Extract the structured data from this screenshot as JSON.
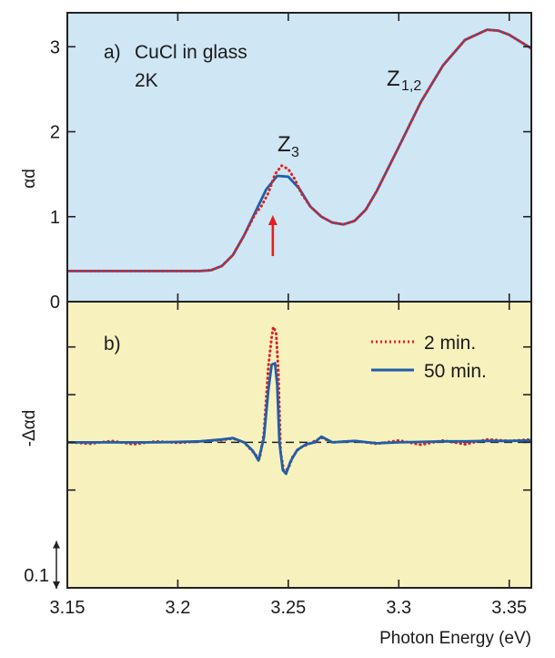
{
  "chart_data": [
    {
      "panel": "a)",
      "type": "line",
      "annotations": {
        "sample": "CuCl in glass",
        "temperature": "2K",
        "z3": "Z3",
        "z12": "Z1,2"
      },
      "ylabel": "αd",
      "xlim": [
        3.15,
        3.36
      ],
      "ylim": [
        0,
        3.4
      ],
      "yticks": [
        0,
        1,
        2,
        3
      ],
      "background": "#cfe6f4",
      "series": [
        {
          "name": "50 min.",
          "color": "#1f5fa8",
          "style": "solid",
          "x": [
            3.15,
            3.2,
            3.21,
            3.215,
            3.22,
            3.225,
            3.23,
            3.235,
            3.24,
            3.245,
            3.25,
            3.255,
            3.26,
            3.265,
            3.27,
            3.275,
            3.28,
            3.285,
            3.29,
            3.3,
            3.31,
            3.32,
            3.33,
            3.34,
            3.345,
            3.35,
            3.36
          ],
          "y": [
            0.36,
            0.36,
            0.36,
            0.37,
            0.42,
            0.55,
            0.78,
            1.05,
            1.32,
            1.48,
            1.47,
            1.33,
            1.12,
            1.0,
            0.93,
            0.91,
            0.95,
            1.08,
            1.3,
            1.82,
            2.35,
            2.78,
            3.08,
            3.2,
            3.19,
            3.14,
            2.98
          ]
        },
        {
          "name": "2 min.",
          "color": "#e02020",
          "style": "dotted",
          "x": [
            3.15,
            3.2,
            3.21,
            3.215,
            3.22,
            3.225,
            3.23,
            3.235,
            3.238,
            3.241,
            3.244,
            3.247,
            3.25,
            3.253,
            3.256,
            3.26,
            3.265,
            3.27,
            3.275,
            3.28,
            3.285,
            3.29,
            3.3,
            3.31,
            3.32,
            3.33,
            3.34,
            3.345,
            3.35,
            3.36
          ],
          "y": [
            0.36,
            0.36,
            0.36,
            0.37,
            0.42,
            0.55,
            0.78,
            1.03,
            1.13,
            1.28,
            1.5,
            1.6,
            1.56,
            1.44,
            1.27,
            1.12,
            1.0,
            0.93,
            0.91,
            0.95,
            1.08,
            1.3,
            1.82,
            2.35,
            2.78,
            3.08,
            3.2,
            3.19,
            3.14,
            2.98
          ]
        }
      ],
      "arrow_at_x": 3.243
    },
    {
      "panel": "b)",
      "type": "line",
      "ylabel": "-Δαd",
      "xlabel": "Photon Energy (eV)",
      "xlim": [
        3.15,
        3.36
      ],
      "ylim": [
        -0.305,
        0.295
      ],
      "yticks": [
        -0.1,
        0,
        0.1,
        0.2
      ],
      "xticks": [
        3.15,
        3.2,
        3.25,
        3.3,
        3.35
      ],
      "scale_bar": {
        "label": "0.1",
        "value": 0.1
      },
      "background": "#f7f1be",
      "legend": "top-right",
      "series": [
        {
          "name": "2 min.",
          "color": "#e02020",
          "style": "dotted",
          "x": [
            3.15,
            3.16,
            3.17,
            3.18,
            3.19,
            3.2,
            3.21,
            3.22,
            3.225,
            3.23,
            3.234,
            3.237,
            3.239,
            3.241,
            3.2425,
            3.2432,
            3.2445,
            3.2455,
            3.2465,
            3.248,
            3.25,
            3.252,
            3.255,
            3.26,
            3.265,
            3.27,
            3.28,
            3.29,
            3.3,
            3.31,
            3.32,
            3.33,
            3.34,
            3.35,
            3.36
          ],
          "y": [
            0.001,
            -0.003,
            0.003,
            -0.004,
            0.002,
            -0.001,
            0.002,
            0.005,
            0.008,
            0.0,
            -0.02,
            -0.035,
            0.02,
            0.16,
            0.22,
            0.242,
            0.23,
            0.15,
            -0.02,
            -0.06,
            -0.055,
            -0.03,
            -0.012,
            -0.002,
            0.01,
            0.0,
            0.003,
            -0.003,
            0.004,
            -0.005,
            0.004,
            -0.004,
            0.006,
            0.003,
            0.006
          ]
        },
        {
          "name": "50 min.",
          "color": "#1f5fa8",
          "style": "solid",
          "x": [
            3.15,
            3.16,
            3.17,
            3.18,
            3.19,
            3.2,
            3.21,
            3.22,
            3.225,
            3.23,
            3.234,
            3.2365,
            3.239,
            3.241,
            3.2425,
            3.244,
            3.245,
            3.246,
            3.2475,
            3.249,
            3.251,
            3.254,
            3.258,
            3.262,
            3.265,
            3.27,
            3.28,
            3.29,
            3.3,
            3.31,
            3.32,
            3.33,
            3.34,
            3.35,
            3.36
          ],
          "y": [
            0.0,
            0.0,
            0.0,
            0.0,
            0.0,
            0.001,
            0.002,
            0.006,
            0.009,
            0.0,
            -0.018,
            -0.038,
            0.01,
            0.11,
            0.163,
            0.166,
            0.12,
            0.0,
            -0.058,
            -0.066,
            -0.04,
            -0.016,
            -0.004,
            0.0,
            0.012,
            0.0,
            0.003,
            -0.002,
            0.0,
            0.001,
            0.002,
            0.002,
            0.003,
            0.003,
            0.004
          ]
        }
      ]
    }
  ]
}
